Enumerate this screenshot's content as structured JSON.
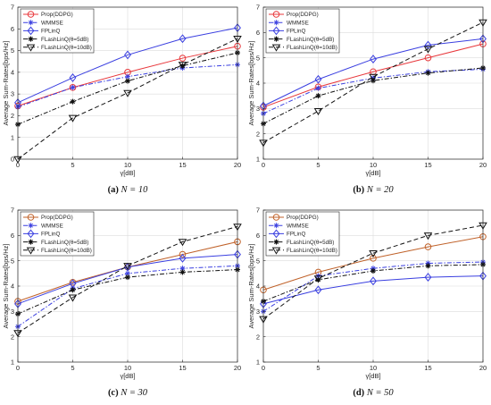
{
  "chart_data": [
    {
      "type": "line",
      "caption_tag": "(a)",
      "caption_text": "N = 10",
      "xlabel": "γ[dB]",
      "ylabel": "Average Sum-Rates[bps/Hz]",
      "xlim": [
        0,
        20
      ],
      "ylim": [
        0,
        7
      ],
      "xticks": [
        0,
        5,
        10,
        15,
        20
      ],
      "yticks": [
        0,
        1,
        2,
        3,
        4,
        5,
        6,
        7
      ],
      "grid": true,
      "legend": "top-left",
      "x": [
        0,
        5,
        10,
        15,
        20
      ],
      "series": [
        {
          "name": "Prop(DDPG)",
          "color": "#e8383c",
          "marker": "circle",
          "dash": "solid",
          "values": [
            2.45,
            3.3,
            4.0,
            4.65,
            5.2
          ]
        },
        {
          "name": "WMMSE",
          "color": "#3a3fe0",
          "marker": "star",
          "dash": "dashdot",
          "values": [
            2.4,
            3.3,
            3.8,
            4.2,
            4.35
          ]
        },
        {
          "name": "FPLinQ",
          "color": "#3a3fe0",
          "marker": "diamond",
          "dash": "solid",
          "values": [
            2.6,
            3.75,
            4.8,
            5.55,
            6.05
          ]
        },
        {
          "name": "FLashLinQ(θ=5dB)",
          "color": "#111111",
          "marker": "asterisk",
          "dash": "dashdot",
          "values": [
            1.6,
            2.65,
            3.6,
            4.3,
            4.9
          ]
        },
        {
          "name": "FLashLinQ(θ=10dB)",
          "color": "#111111",
          "marker": "triangle-down",
          "dash": "dashed",
          "values": [
            0.0,
            1.9,
            3.05,
            4.35,
            5.55
          ]
        }
      ]
    },
    {
      "type": "line",
      "caption_tag": "(b)",
      "caption_text": "N = 20",
      "xlabel": "γ[dB]",
      "ylabel": "Average Sum-Rates[bps/Hz]",
      "xlim": [
        0,
        20
      ],
      "ylim": [
        1,
        7
      ],
      "xticks": [
        0,
        5,
        10,
        15,
        20
      ],
      "yticks": [
        1,
        2,
        3,
        4,
        5,
        6,
        7
      ],
      "grid": true,
      "legend": "top-left",
      "x": [
        0,
        5,
        10,
        15,
        20
      ],
      "series": [
        {
          "name": "Prop(DDPG)",
          "color": "#e8383c",
          "marker": "circle",
          "dash": "solid",
          "values": [
            3.05,
            3.85,
            4.45,
            5.0,
            5.55
          ]
        },
        {
          "name": "WMMSE",
          "color": "#3a3fe0",
          "marker": "star",
          "dash": "dashdot",
          "values": [
            2.8,
            3.8,
            4.2,
            4.45,
            4.55
          ]
        },
        {
          "name": "FPLinQ",
          "color": "#3a3fe0",
          "marker": "diamond",
          "dash": "solid",
          "values": [
            3.1,
            4.15,
            4.95,
            5.5,
            5.75
          ]
        },
        {
          "name": "FLashLinQ(θ=5dB)",
          "color": "#111111",
          "marker": "asterisk",
          "dash": "dashdot",
          "values": [
            2.4,
            3.5,
            4.1,
            4.4,
            4.6
          ]
        },
        {
          "name": "FLashLinQ(θ=10dB)",
          "color": "#111111",
          "marker": "triangle-down",
          "dash": "dashed",
          "values": [
            1.65,
            2.9,
            4.25,
            5.35,
            6.4
          ]
        }
      ]
    },
    {
      "type": "line",
      "caption_tag": "(c)",
      "caption_text": "N = 30",
      "xlabel": "γ[dB]",
      "ylabel": "Average Sum-Rates[bps/Hz]",
      "xlim": [
        0,
        20
      ],
      "ylim": [
        1,
        7
      ],
      "xticks": [
        0,
        5,
        10,
        15,
        20
      ],
      "yticks": [
        1,
        2,
        3,
        4,
        5,
        6,
        7
      ],
      "grid": true,
      "legend": "top-left",
      "x": [
        0,
        5,
        10,
        15,
        20
      ],
      "series": [
        {
          "name": "Prop(DDPG)",
          "color": "#c0622a",
          "marker": "circle",
          "dash": "solid",
          "values": [
            3.4,
            4.15,
            4.75,
            5.25,
            5.75
          ]
        },
        {
          "name": "WMMSE",
          "color": "#3a3fe0",
          "marker": "star",
          "dash": "dashdot",
          "values": [
            2.4,
            3.9,
            4.5,
            4.7,
            4.8
          ]
        },
        {
          "name": "FPLinQ",
          "color": "#3a3fe0",
          "marker": "diamond",
          "dash": "solid",
          "values": [
            3.3,
            4.1,
            4.75,
            5.1,
            5.25
          ]
        },
        {
          "name": "FLashLinQ(θ=5dB)",
          "color": "#111111",
          "marker": "asterisk",
          "dash": "dashdot",
          "values": [
            2.9,
            3.85,
            4.35,
            4.55,
            4.65
          ]
        },
        {
          "name": "FLashLinQ(θ=10dB)",
          "color": "#111111",
          "marker": "triangle-down",
          "dash": "dashed",
          "values": [
            2.15,
            3.55,
            4.8,
            5.75,
            6.35
          ]
        }
      ]
    },
    {
      "type": "line",
      "caption_tag": "(d)",
      "caption_text": "N = 50",
      "xlabel": "γ[dB]",
      "ylabel": "Average Sum-Rates[bps/Hz]",
      "xlim": [
        0,
        20
      ],
      "ylim": [
        1,
        7
      ],
      "xticks": [
        0,
        5,
        10,
        15,
        20
      ],
      "yticks": [
        1,
        2,
        3,
        4,
        5,
        6,
        7
      ],
      "grid": true,
      "legend": "top-left",
      "x": [
        0,
        5,
        10,
        15,
        20
      ],
      "series": [
        {
          "name": "Prop(DDPG)",
          "color": "#c0622a",
          "marker": "circle",
          "dash": "solid",
          "values": [
            3.85,
            4.55,
            5.1,
            5.55,
            5.95
          ]
        },
        {
          "name": "WMMSE",
          "color": "#3a3fe0",
          "marker": "star",
          "dash": "dashdot",
          "values": [
            3.0,
            4.4,
            4.7,
            4.9,
            4.95
          ]
        },
        {
          "name": "FPLinQ",
          "color": "#3a3fe0",
          "marker": "diamond",
          "dash": "solid",
          "values": [
            3.3,
            3.85,
            4.2,
            4.35,
            4.4
          ]
        },
        {
          "name": "FLashLinQ(θ=5dB)",
          "color": "#111111",
          "marker": "asterisk",
          "dash": "dashdot",
          "values": [
            3.4,
            4.25,
            4.6,
            4.8,
            4.85
          ]
        },
        {
          "name": "FLashLinQ(θ=10dB)",
          "color": "#111111",
          "marker": "triangle-down",
          "dash": "dashed",
          "values": [
            2.7,
            4.3,
            5.3,
            6.0,
            6.4
          ]
        }
      ]
    }
  ]
}
